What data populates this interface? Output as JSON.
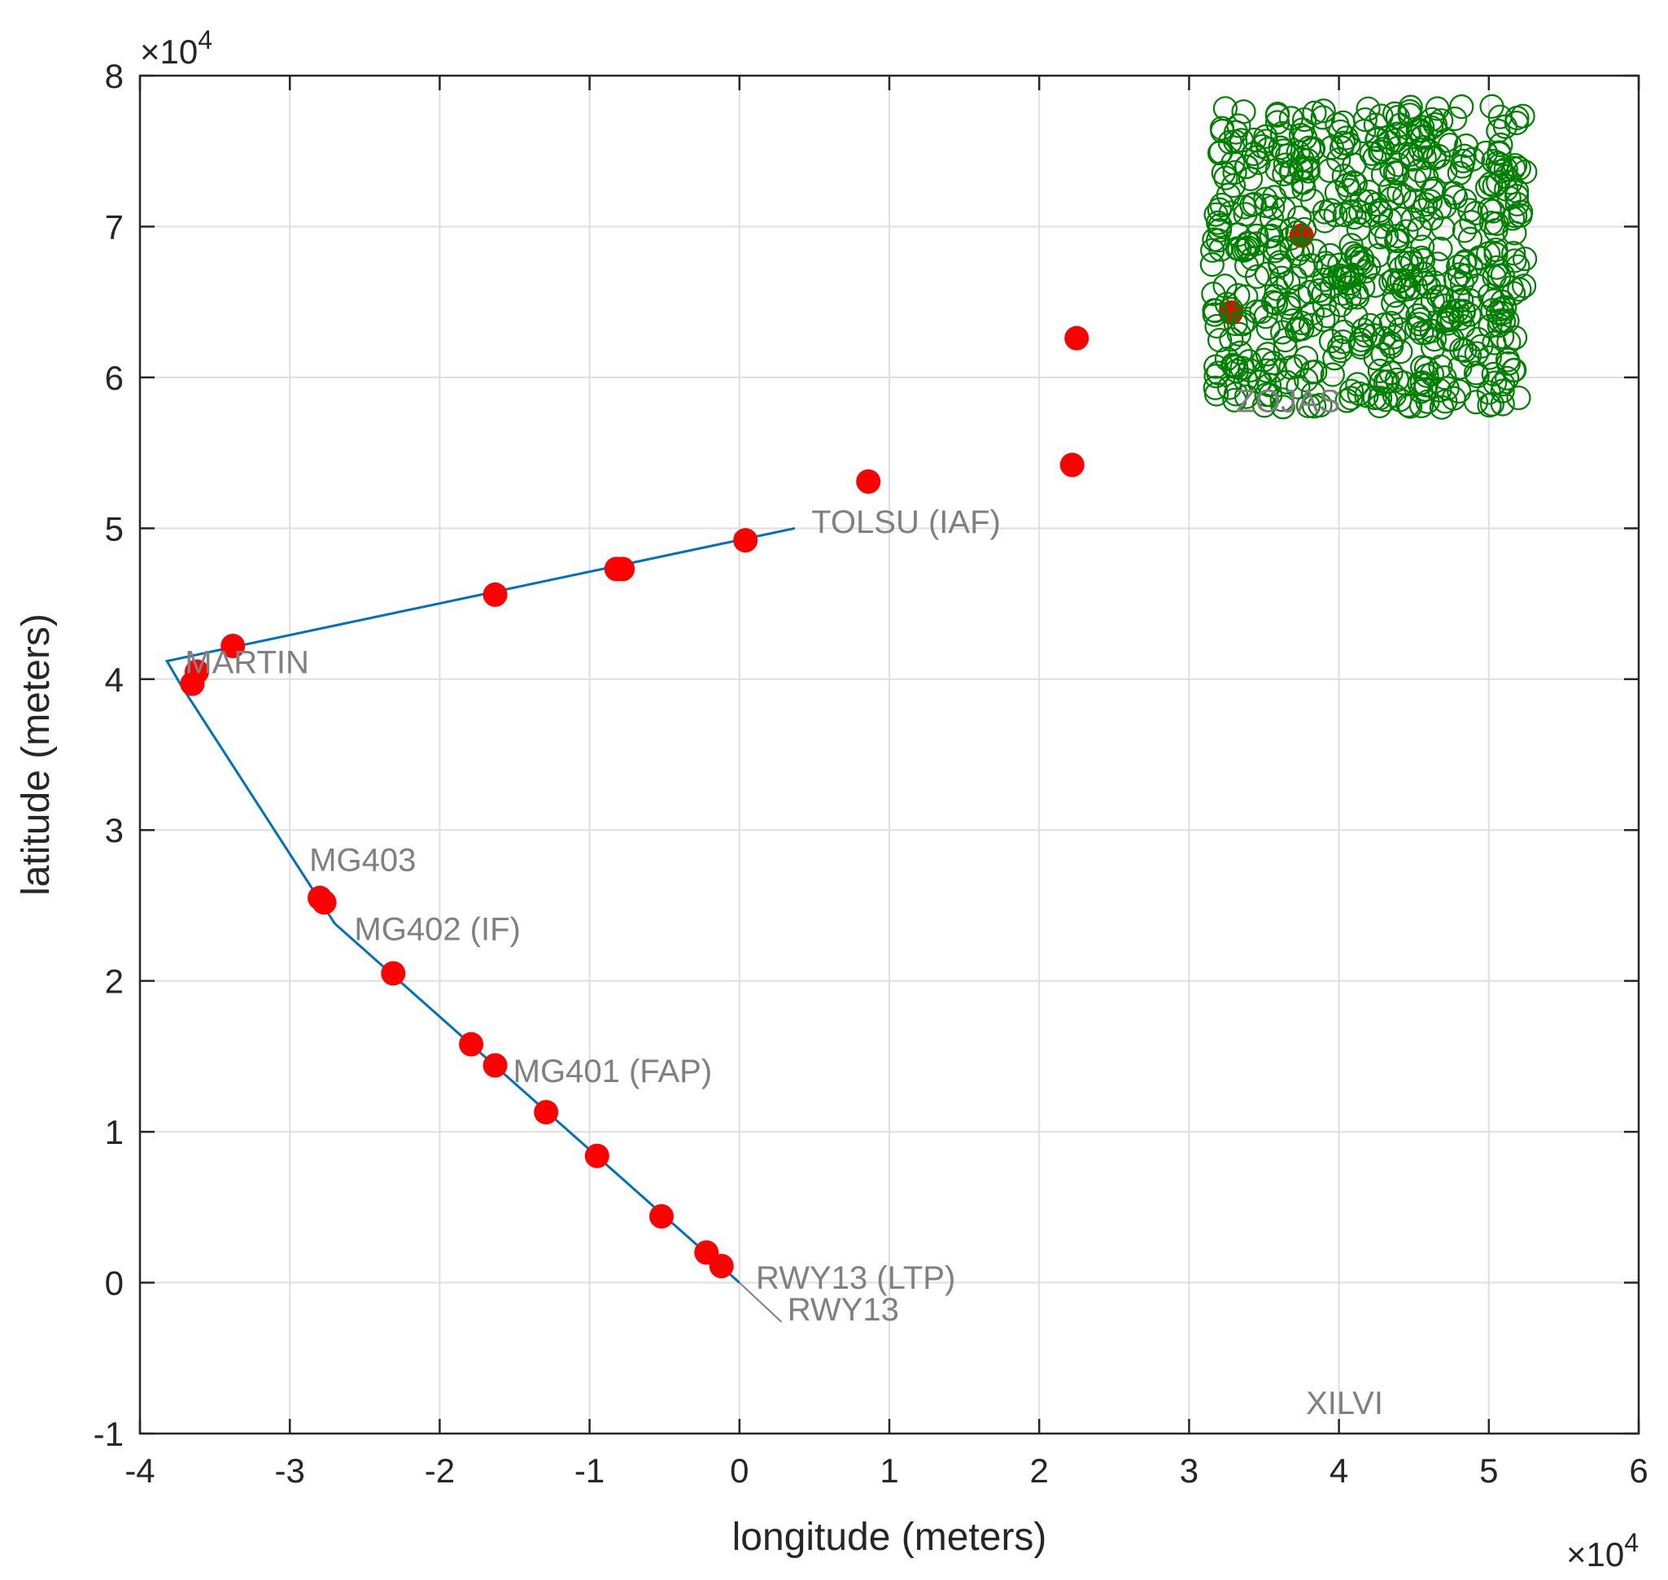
{
  "chart_data": {
    "type": "scatter",
    "title": "",
    "xlabel": "longitude (meters)",
    "ylabel": "latitude  (meters)",
    "xlim": [
      -40000,
      60000
    ],
    "ylim": [
      -10000,
      80000
    ],
    "x_multiplier": {
      "base": "×10",
      "exp": "4"
    },
    "y_multiplier": {
      "base": "×10",
      "exp": "4"
    },
    "x_ticks": [
      -40000,
      -30000,
      -20000,
      -10000,
      0,
      10000,
      20000,
      30000,
      40000,
      50000,
      60000
    ],
    "x_tick_labels": [
      "-4",
      "-3",
      "-2",
      "-1",
      "0",
      "1",
      "2",
      "3",
      "4",
      "5",
      "6"
    ],
    "y_ticks": [
      -10000,
      0,
      10000,
      20000,
      30000,
      40000,
      50000,
      60000,
      70000,
      80000
    ],
    "y_tick_labels": [
      "-1",
      "0",
      "1",
      "2",
      "3",
      "4",
      "5",
      "6",
      "7",
      "8"
    ],
    "grid": true,
    "colors": {
      "route": "#0072BD",
      "aircraft": "#ff0000",
      "cluster": "#008000",
      "labels": "#808080"
    },
    "route": {
      "x": [
        3700,
        -38200,
        -37200,
        -27000,
        0
      ],
      "y": [
        50000,
        41200,
        39500,
        23800,
        0
      ]
    },
    "runway_line": {
      "x": [
        0,
        2800
      ],
      "y": [
        0,
        -2600
      ]
    },
    "waypoints": [
      {
        "label": "TOLSU (IAF)",
        "x": 4800,
        "y": 49700
      },
      {
        "label": "MARTIN",
        "x": -37000,
        "y": 40400
      },
      {
        "label": "MG403",
        "x": -28700,
        "y": 27300
      },
      {
        "label": "MG402 (IF)",
        "x": -25700,
        "y": 22700
      },
      {
        "label": "MG401 (FAP)",
        "x": -15100,
        "y": 13300
      },
      {
        "label": "RWY13 (LTP)",
        "x": 1100,
        "y": -400
      },
      {
        "label": "RWY13",
        "x": 3200,
        "y": -2500
      },
      {
        "label": "XILVI",
        "x": 37800,
        "y": -8700
      },
      {
        "label": "ZOJAS",
        "x": 33100,
        "y": 57700
      }
    ],
    "aircraft_positions": {
      "x": [
        -36500,
        -36200,
        -33800,
        -16300,
        -8200,
        -7800,
        400,
        8600,
        22200,
        22500,
        32800,
        37500,
        -28000,
        -27700,
        -23100,
        -17900,
        -16300,
        -12900,
        -9500,
        -5200,
        -2200,
        -1200
      ],
      "y": [
        39700,
        40500,
        42200,
        45600,
        47300,
        47300,
        49200,
        53100,
        54200,
        62600,
        64300,
        69400,
        25500,
        25200,
        20500,
        15800,
        14400,
        11300,
        8400,
        4400,
        2000,
        1100
      ]
    },
    "cluster": {
      "marker": "open-circle",
      "x_range": [
        31500,
        52500
      ],
      "y_range": [
        58000,
        78000
      ],
      "count": 600
    }
  }
}
